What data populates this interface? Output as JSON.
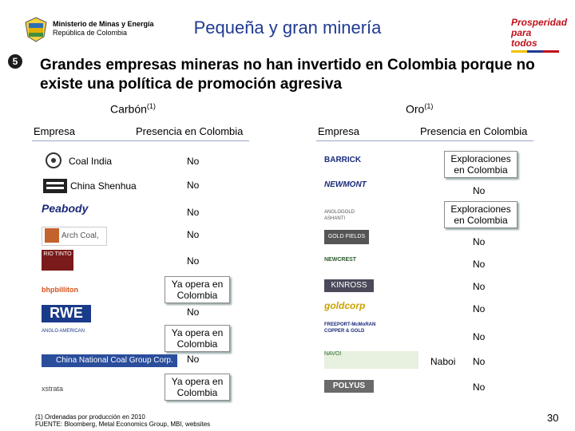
{
  "header": {
    "title": "Pequeña y gran minería",
    "ministry_name": "Ministerio de Minas y Energía",
    "ministry_country": "República de Colombia",
    "brand": "Prosperidad para todos",
    "slide_number": "5",
    "page_number": "30"
  },
  "heading": "Grandes empresas mineras no han invertido en Colombia porque no existe una política de promoción agresiva",
  "carbon": {
    "title": "Carbón",
    "title_note": "(1)",
    "col_company": "Empresa",
    "col_presence": "Presencia en Colombia",
    "rows": [
      {
        "name": "Coal India",
        "logo": "coal-india-logo",
        "value": "No",
        "callout": false
      },
      {
        "name": "China Shenhua",
        "logo": "china-shenhua-logo",
        "value": "No",
        "callout": false
      },
      {
        "name": "",
        "logo": "peabody-logo",
        "logo_text": "Peabody",
        "value": "No",
        "callout": false
      },
      {
        "name": "",
        "logo": "arch-coal-logo",
        "logo_text": "Arch Coal, Inc.",
        "value": "No",
        "callout": false
      },
      {
        "name": "",
        "logo": "rio-tinto-logo",
        "logo_text": "RIO TINTO",
        "value": "No",
        "callout": false
      },
      {
        "name": "",
        "logo": "bhp-billiton-logo",
        "logo_text": "bhpbilliton",
        "value": "Ya opera en Colombia",
        "callout": true
      },
      {
        "name": "",
        "logo": "rwe-logo",
        "logo_text": "RWE",
        "value": "No",
        "callout": false
      },
      {
        "name": "",
        "logo": "anglo-american-logo",
        "logo_text": "ANGLO AMERICAN",
        "value": "Ya opera en Colombia",
        "callout": true
      },
      {
        "name": "",
        "logo": "china-national-coal-logo",
        "logo_text": "China National Coal Group Corp.",
        "value": "No",
        "callout": false
      },
      {
        "name": "",
        "logo": "xstrata-logo",
        "logo_text": "xstrata",
        "value": "Ya opera en Colombia",
        "callout": true
      }
    ]
  },
  "gold": {
    "title": "Oro",
    "title_note": "(1)",
    "col_company": "Empresa",
    "col_presence": "Presencia en Colombia",
    "rows": [
      {
        "name": "",
        "logo": "barrick-logo",
        "logo_text": "BARRICK",
        "value": "Exploraciones en Colombia",
        "callout": true
      },
      {
        "name": "",
        "logo": "newmont-logo",
        "logo_text": "NEWMONT",
        "value": "No",
        "callout": false
      },
      {
        "name": "",
        "logo": "anglogold-ashanti-logo",
        "logo_text": "ANGLOGOLD ASHANTI",
        "value": "Exploraciones en Colombia",
        "callout": true
      },
      {
        "name": "",
        "logo": "gold-fields-logo",
        "logo_text": "GOLD FIELDS",
        "value": "No",
        "callout": false
      },
      {
        "name": "",
        "logo": "newcrest-logo",
        "logo_text": "NEWCREST",
        "value": "No",
        "callout": false
      },
      {
        "name": "",
        "logo": "kinross-logo",
        "logo_text": "KINROSS",
        "value": "No",
        "callout": false
      },
      {
        "name": "",
        "logo": "goldcorp-logo",
        "logo_text": "goldcorp",
        "value": "No",
        "callout": false
      },
      {
        "name": "",
        "logo": "freeport-mcmoran-logo",
        "logo_text": "FREEPORT-McMoRAN COPPER & GOLD",
        "value": "No",
        "callout": false
      },
      {
        "name": "Naboi",
        "logo": "navoi-logo",
        "logo_text": "NAVOI",
        "value": "No",
        "callout": false
      },
      {
        "name": "",
        "logo": "polyus-logo",
        "logo_text": "POLYUS",
        "value": "No",
        "callout": false
      }
    ]
  },
  "footnote": {
    "line1": "(1) Ordenadas por producción en 2010",
    "line2": "FUENTE: Bloomberg, Metal Economics Group, MBI, websites"
  },
  "colors": {
    "title_blue": "#1f3a93",
    "separator": "#9aa6c8",
    "brand_red": "#c0121c"
  }
}
